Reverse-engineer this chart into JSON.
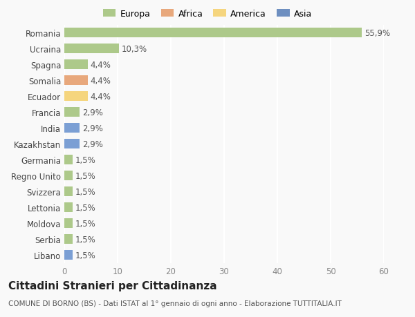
{
  "countries": [
    "Romania",
    "Ucraina",
    "Spagna",
    "Somalia",
    "Ecuador",
    "Francia",
    "India",
    "Kazakhstan",
    "Germania",
    "Regno Unito",
    "Svizzera",
    "Lettonia",
    "Moldova",
    "Serbia",
    "Libano"
  ],
  "values": [
    55.9,
    10.3,
    4.4,
    4.4,
    4.4,
    2.9,
    2.9,
    2.9,
    1.5,
    1.5,
    1.5,
    1.5,
    1.5,
    1.5,
    1.5
  ],
  "labels": [
    "55,9%",
    "10,3%",
    "4,4%",
    "4,4%",
    "4,4%",
    "2,9%",
    "2,9%",
    "2,9%",
    "1,5%",
    "1,5%",
    "1,5%",
    "1,5%",
    "1,5%",
    "1,5%",
    "1,5%"
  ],
  "colors": [
    "#adc98a",
    "#adc98a",
    "#adc98a",
    "#e8a87c",
    "#f5d57e",
    "#adc98a",
    "#7b9fd4",
    "#7b9fd4",
    "#adc98a",
    "#adc98a",
    "#adc98a",
    "#adc98a",
    "#adc98a",
    "#adc98a",
    "#7b9fd4"
  ],
  "legend_labels": [
    "Europa",
    "Africa",
    "America",
    "Asia"
  ],
  "legend_colors": [
    "#adc98a",
    "#e8a87c",
    "#f5d57e",
    "#6e8fc0"
  ],
  "xlim": [
    0,
    60
  ],
  "xticks": [
    0,
    10,
    20,
    30,
    40,
    50,
    60
  ],
  "title": "Cittadini Stranieri per Cittadinanza",
  "subtitle": "COMUNE DI BORNO (BS) - Dati ISTAT al 1° gennaio di ogni anno - Elaborazione TUTTITALIA.IT",
  "background_color": "#f9f9f9",
  "grid_color": "#ffffff",
  "bar_height": 0.62,
  "label_fontsize": 8.5,
  "tick_fontsize": 8.5,
  "title_fontsize": 11,
  "subtitle_fontsize": 7.5
}
